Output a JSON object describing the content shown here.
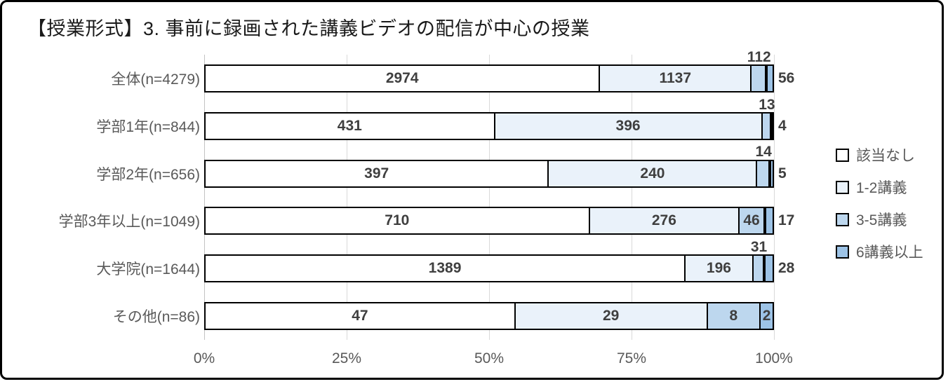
{
  "title": "【授業形式】3. 事前に録画された講義ビデオの配信が中心の授業",
  "chart_data": {
    "type": "bar",
    "orientation": "horizontal",
    "stacked": true,
    "value_mode": "counts normalized to 100% per row",
    "categories": [
      "全体(n=4279)",
      "学部1年(n=844)",
      "学部2年(n=656)",
      "学部3年以上(n=1049)",
      "大学院(n=1644)",
      "その他(n=86)"
    ],
    "row_totals": [
      4279,
      844,
      656,
      1049,
      1644,
      86
    ],
    "series": [
      {
        "name": "該当なし",
        "color": "#ffffff",
        "values": [
          2974,
          431,
          397,
          710,
          1389,
          47
        ]
      },
      {
        "name": "1-2講義",
        "color": "#eaf2fa",
        "values": [
          1137,
          396,
          240,
          276,
          196,
          29
        ]
      },
      {
        "name": "3-5講義",
        "color": "#bdd7ee",
        "values": [
          112,
          13,
          14,
          46,
          31,
          8
        ]
      },
      {
        "name": "6講義以上",
        "color": "#9dc3e6",
        "values": [
          56,
          4,
          5,
          17,
          28,
          2
        ]
      }
    ],
    "x_ticks": [
      "0%",
      "25%",
      "50%",
      "75%",
      "100%"
    ],
    "x_tick_values": [
      0,
      25,
      50,
      75,
      100
    ],
    "xlim": [
      0,
      100
    ],
    "grid": true,
    "gridline_color": "#d9d9d9",
    "bar_border_color": "#000000",
    "label_color": "#3f3f3f",
    "axis_text_color": "#595959",
    "legend_position": "right"
  }
}
